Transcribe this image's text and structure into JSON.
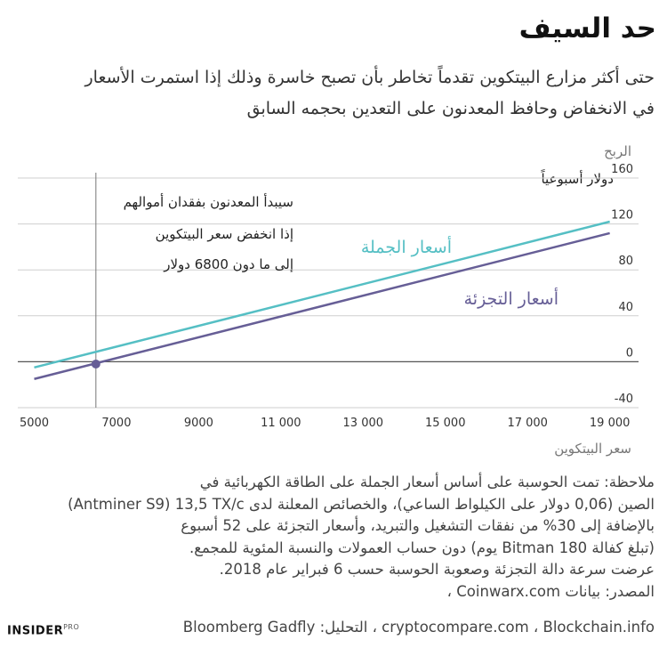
{
  "header": {
    "title": "حد السيف",
    "subtitle": "حتى أكثر مزارع البيتكوين تقدماً تخاطر بأن تصبح خاسرة وذلك إذا استمرت الأسعار في الانخفاض وحافظ المعدنون على التعدين بحجمه السابق"
  },
  "chart_data": {
    "type": "line",
    "ylabel": "الربح",
    "yunit": "دولار أسبوعياً",
    "xlabel": "سعر البيتكوين",
    "xlim": [
      4600,
      19700
    ],
    "ylim": [
      -40,
      160
    ],
    "xticks": [
      5000,
      7000,
      9000,
      11000,
      13000,
      15000,
      17000,
      19000
    ],
    "xtick_labels": [
      "5000",
      "7000",
      "9000",
      "11 000",
      "13 000",
      "15 000",
      "17 000",
      "19 000"
    ],
    "yticks": [
      -40,
      0,
      40,
      80,
      120,
      160
    ],
    "ytick_labels": [
      "-40",
      "0",
      "40",
      "80",
      "120",
      "160"
    ],
    "grid": true,
    "series": [
      {
        "name": "أسعار الجملة",
        "color": "#55bfc4",
        "x": [
          5000,
          19000
        ],
        "y": [
          -5,
          122
        ]
      },
      {
        "name": "أسعار التجزئة",
        "color": "#665e96",
        "x": [
          5000,
          19000
        ],
        "y": [
          -15,
          112
        ]
      }
    ],
    "marker": {
      "x": 6500,
      "y": -2,
      "color": "#665e96"
    },
    "annotation": {
      "lines": [
        "سيبدأ المعدنون بفقدان أموالهم",
        "إذا انخفض سعر البيتكوين",
        "إلى ما دون 6800 دولار"
      ]
    }
  },
  "notes": {
    "lines": [
      "ملاحظة: تمت الحوسبة على أساس أسعار الجملة على الطاقة الكهربائية في",
      "الصين (0,06 دولار على الكيلواط الساعي)، والخصائص المعلنة لدى Antminer S9) 13,5 TX/c)",
      "بالإضافة إلى 30% من نفقات التشغيل والتبريد، وأسعار التجزئة على 52 أسبوع",
      "(تبلغ كفالة 180 Bitman يوم) دون حساب العمولات والنسبة المئوية للمجمع.",
      "عرضت سرعة دالة التجزئة وصعوبة الحوسبة حسب 6 فبراير عام 2018.",
      "المصدر: بيانات Coinwarx.com ،"
    ],
    "source": "Bloomberg Gadfly :التحليل ، cryptocompare.com ، Blockchain.info"
  },
  "branding": {
    "logo": "INSIDER",
    "logo_suffix": "PRO"
  }
}
